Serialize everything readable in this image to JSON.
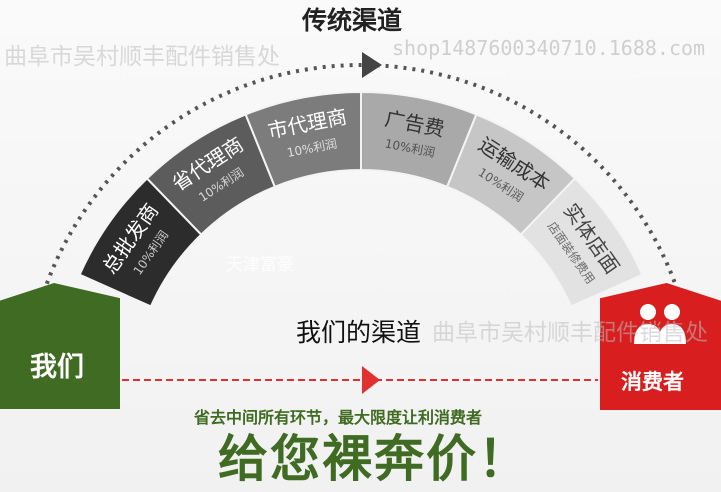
{
  "traditional_label": "传统渠道",
  "our_channel_label": "我们的渠道",
  "us_label": "我们",
  "consumer_label": "消费者",
  "segments": [
    {
      "title": "总批发商",
      "sub": "10%利润",
      "color": "#2c2c2c",
      "text": "#ffffff"
    },
    {
      "title": "省代理商",
      "sub": "10%利润",
      "color": "#5c5c5c",
      "text": "#ffffff"
    },
    {
      "title": "市代理商",
      "sub": "10%利润",
      "color": "#7c7c7c",
      "text": "#ffffff"
    },
    {
      "title": "广告费",
      "sub": "10%利润",
      "color": "#a9a9a9",
      "text": "#333333"
    },
    {
      "title": "运输成本",
      "sub": "10%利润",
      "color": "#c6c6c6",
      "text": "#333333"
    },
    {
      "title": "实体店面",
      "sub": "店面装修费用",
      "color": "#e2e2e2",
      "text": "#444444"
    }
  ],
  "tagline": "省去中间所有环节，最大限度让利消费者",
  "headline": "给您裸奔价！",
  "watermarks": {
    "shop_name": "曲阜市吴村顺丰配件销售处",
    "city": "天津富豪",
    "url": "shop1487600340710.1688.com"
  },
  "colors": {
    "green": "#3f6b22",
    "red": "#d81e1e",
    "dashed": "#e03030",
    "dots": "#555555"
  }
}
